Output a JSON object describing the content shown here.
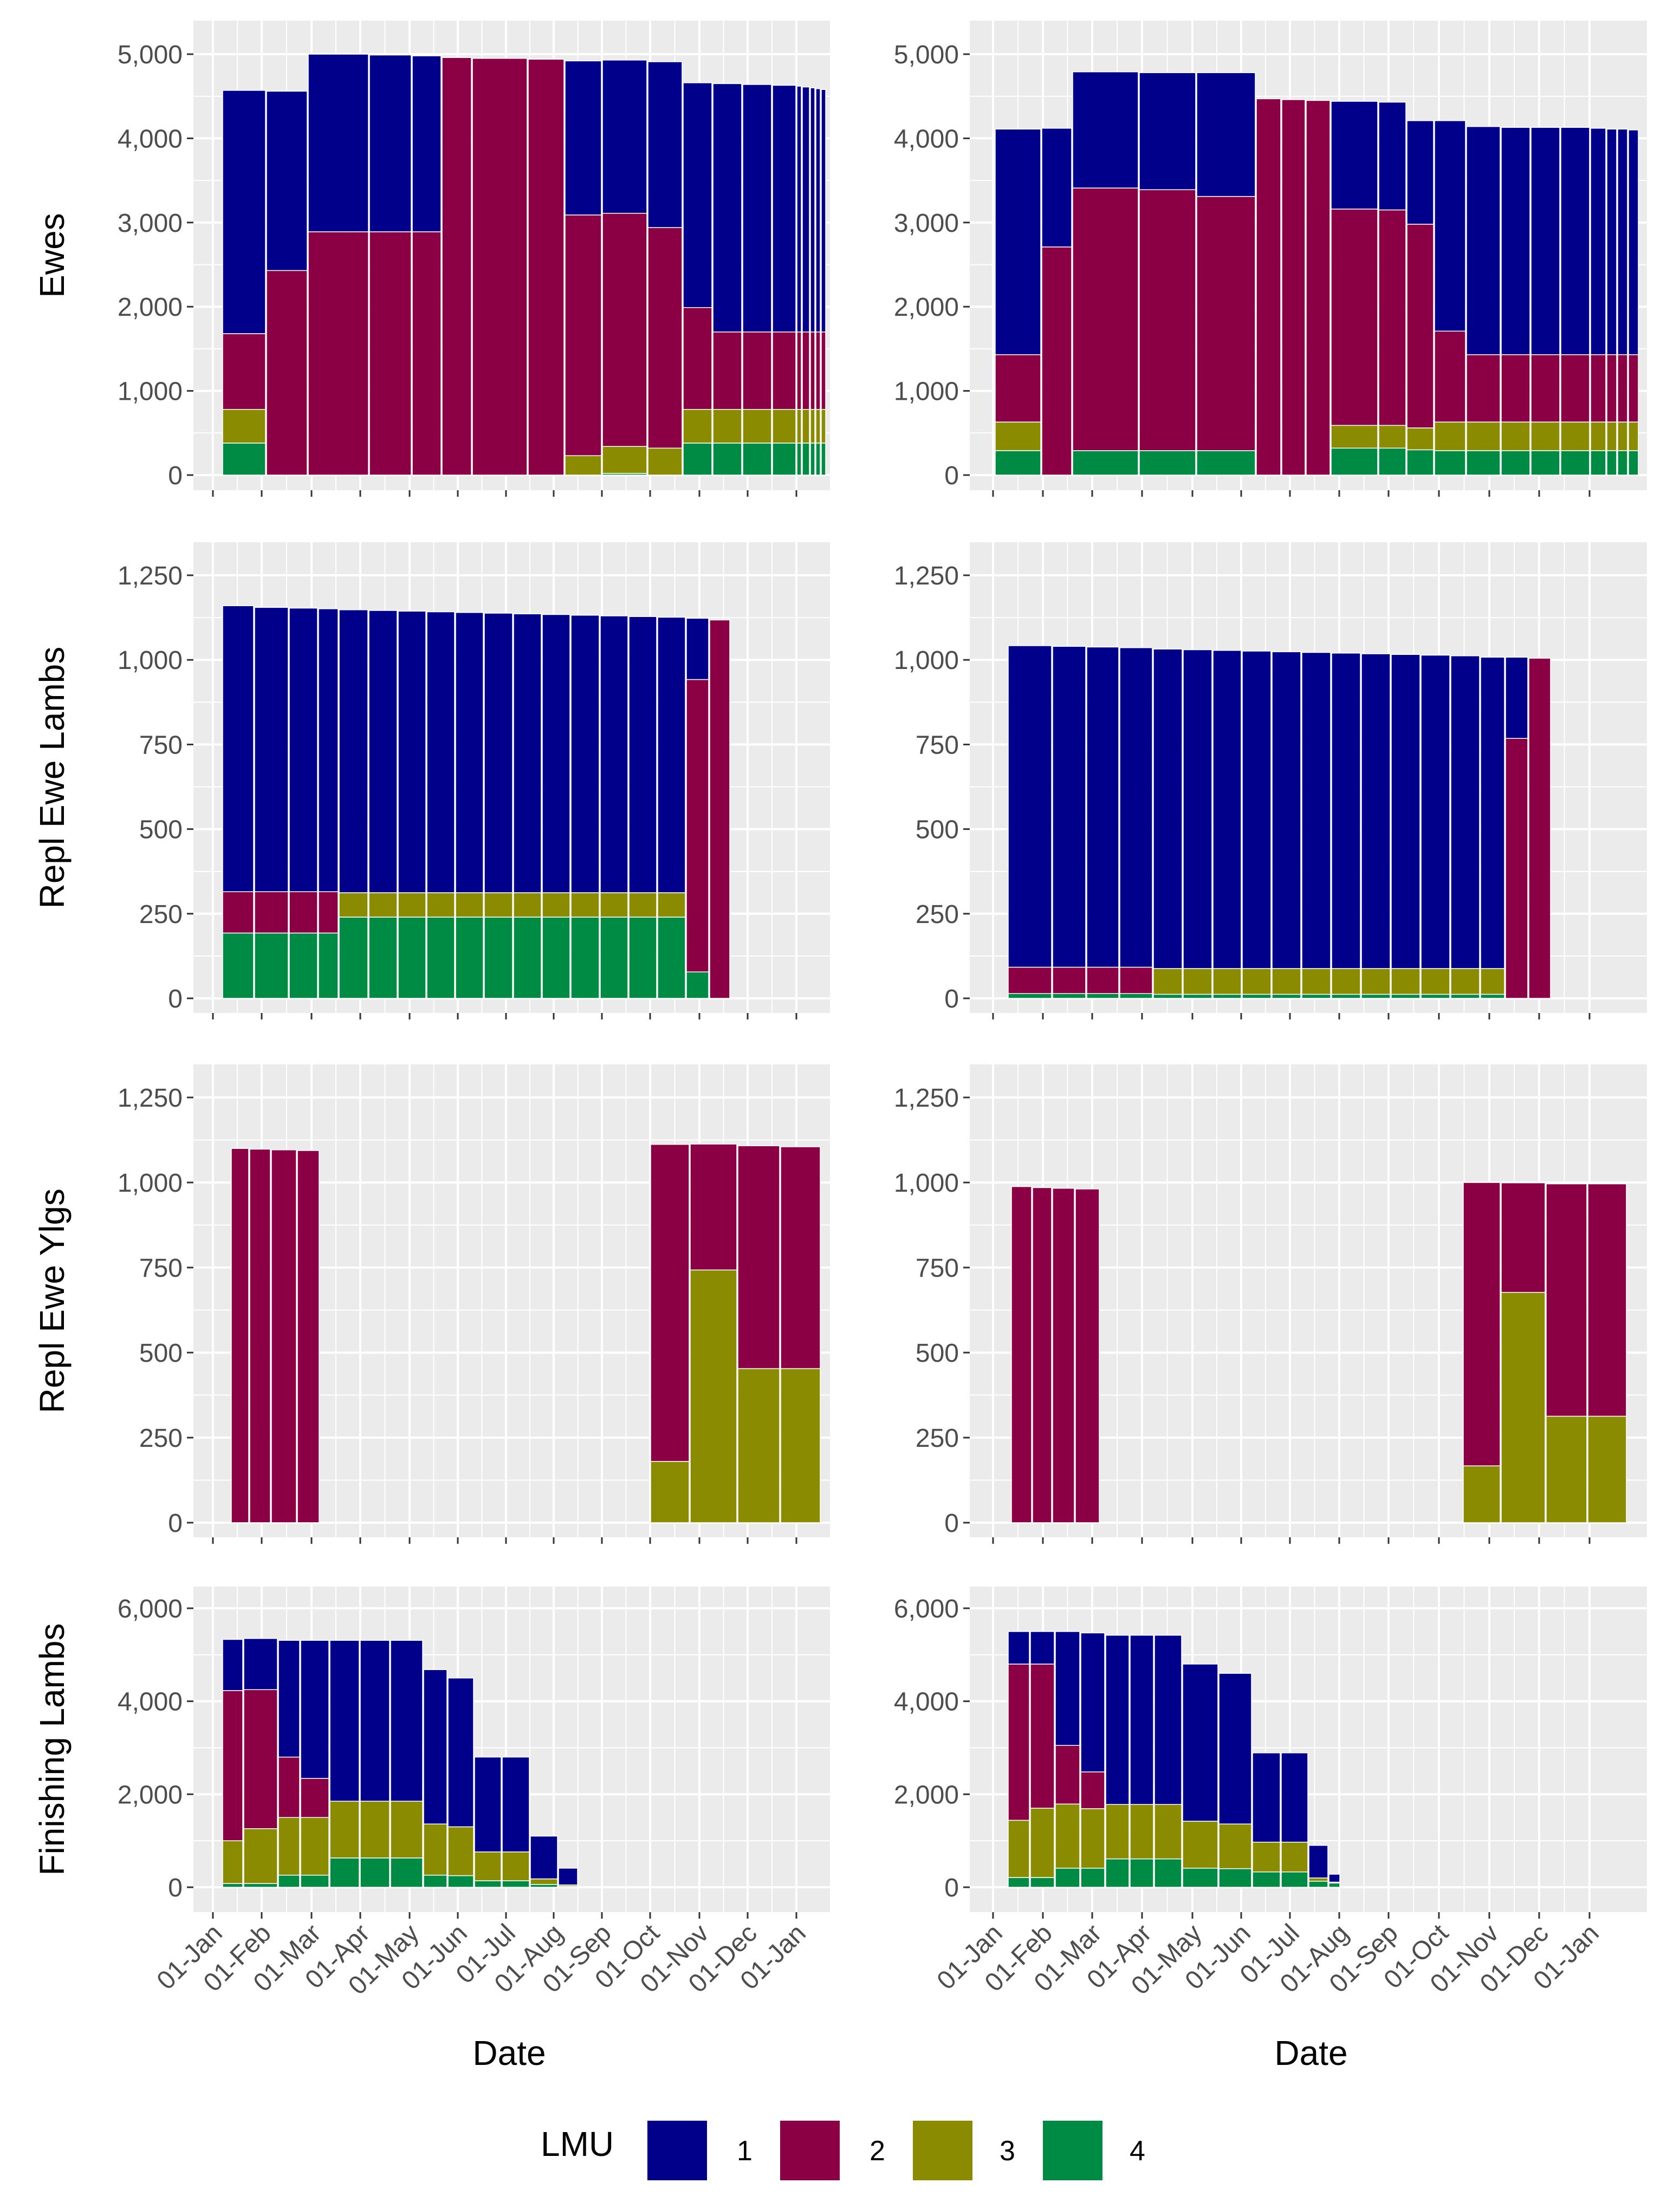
{
  "figure": {
    "xlabel": "Date",
    "x_ticks": [
      "01-Jan",
      "01-Feb",
      "01-Mar",
      "01-Apr",
      "01-May",
      "01-Jun",
      "01-Jul",
      "01-Aug",
      "01-Sep",
      "01-Oct",
      "01-Nov",
      "01-Dec",
      "01-Jan"
    ],
    "legend": {
      "title": "LMU",
      "entries": [
        {
          "label": "1",
          "color": "#00008b"
        },
        {
          "label": "2",
          "color": "#8b0045"
        },
        {
          "label": "3",
          "color": "#8b8b00"
        },
        {
          "label": "4",
          "color": "#008b45"
        }
      ]
    }
  },
  "chart_data": [
    {
      "type": "bar",
      "stacked": true,
      "row": 0,
      "col": 0,
      "ylabel": "Ewes",
      "xlabel": "",
      "ylim": [
        0,
        5000
      ],
      "y_ticks": [
        {
          "v": 0,
          "label": "0"
        },
        {
          "v": 1000,
          "label": "1,000"
        },
        {
          "v": 2000,
          "label": "2,000"
        },
        {
          "v": 3000,
          "label": "3,000"
        },
        {
          "v": 4000,
          "label": "4,000"
        },
        {
          "v": 5000,
          "label": "5,000"
        }
      ],
      "series": [
        {
          "name": "1",
          "values": [
            2890,
            2130,
            2110,
            2100,
            2090,
            0,
            0,
            0,
            1830,
            1820,
            1970,
            2670,
            2950,
            2940,
            2930,
            2920,
            2910,
            2900,
            2890,
            2880
          ]
        },
        {
          "name": "2",
          "values": [
            900,
            2430,
            2890,
            2890,
            2890,
            4960,
            4950,
            4940,
            2860,
            2770,
            2620,
            1210,
            920,
            920,
            920,
            920,
            920,
            920,
            920,
            920
          ]
        },
        {
          "name": "3",
          "values": [
            400,
            0,
            0,
            0,
            0,
            0,
            0,
            0,
            230,
            320,
            320,
            400,
            400,
            400,
            400,
            400,
            400,
            400,
            400,
            400
          ]
        },
        {
          "name": "4",
          "values": [
            380,
            0,
            0,
            0,
            0,
            0,
            0,
            0,
            0,
            20,
            0,
            380,
            380,
            380,
            380,
            380,
            380,
            380,
            380,
            380
          ]
        }
      ]
    },
    {
      "type": "bar",
      "stacked": true,
      "row": 0,
      "col": 1,
      "ylabel": "",
      "xlabel": "",
      "ylim": [
        0,
        5000
      ],
      "y_ticks": [
        {
          "v": 0,
          "label": "0"
        },
        {
          "v": 1000,
          "label": "1,000"
        },
        {
          "v": 2000,
          "label": "2,000"
        },
        {
          "v": 3000,
          "label": "3,000"
        },
        {
          "v": 4000,
          "label": "4,000"
        },
        {
          "v": 5000,
          "label": "5,000"
        }
      ],
      "series": [
        {
          "name": "1",
          "values": [
            2680,
            1410,
            1380,
            1390,
            1470,
            0,
            0,
            0,
            1280,
            1280,
            1230,
            2500,
            2710,
            2700,
            2700,
            2700,
            2690,
            2680,
            2680,
            2670
          ]
        },
        {
          "name": "2",
          "values": [
            800,
            2710,
            3120,
            3100,
            3020,
            4470,
            4460,
            4450,
            2570,
            2560,
            2420,
            1080,
            800,
            800,
            800,
            800,
            800,
            800,
            800,
            800
          ]
        },
        {
          "name": "3",
          "values": [
            340,
            0,
            0,
            0,
            0,
            0,
            0,
            0,
            270,
            270,
            260,
            340,
            340,
            340,
            340,
            340,
            340,
            340,
            340,
            340
          ]
        },
        {
          "name": "4",
          "values": [
            290,
            0,
            290,
            290,
            290,
            0,
            0,
            0,
            320,
            320,
            300,
            290,
            290,
            290,
            290,
            290,
            290,
            290,
            290,
            290
          ]
        }
      ]
    },
    {
      "type": "bar",
      "stacked": true,
      "row": 1,
      "col": 0,
      "ylabel": "Repl Ewe Lambs",
      "xlabel": "",
      "ylim": [
        0,
        1250
      ],
      "y_ticks": [
        {
          "v": 0,
          "label": "0"
        },
        {
          "v": 250,
          "label": "250"
        },
        {
          "v": 500,
          "label": "500"
        },
        {
          "v": 750,
          "label": "750"
        },
        {
          "v": 1000,
          "label": "1,000"
        },
        {
          "v": 1250,
          "label": "1,250"
        }
      ],
      "series": [
        {
          "name": "1",
          "values": [
            845,
            840,
            838,
            836,
            836,
            834,
            832,
            830,
            828,
            826,
            824,
            822,
            820,
            818,
            816,
            814,
            181,
            0
          ]
        },
        {
          "name": "2",
          "values": [
            122,
            122,
            122,
            122,
            0,
            0,
            0,
            0,
            0,
            0,
            0,
            0,
            0,
            0,
            0,
            0,
            864,
            1118
          ]
        },
        {
          "name": "3",
          "values": [
            0,
            0,
            0,
            0,
            72,
            72,
            72,
            72,
            72,
            72,
            72,
            72,
            72,
            72,
            72,
            72,
            0,
            0
          ]
        },
        {
          "name": "4",
          "values": [
            193,
            193,
            193,
            193,
            240,
            240,
            240,
            240,
            240,
            240,
            240,
            240,
            240,
            240,
            240,
            240,
            78,
            0
          ]
        }
      ]
    },
    {
      "type": "bar",
      "stacked": true,
      "row": 1,
      "col": 1,
      "ylabel": "",
      "xlabel": "",
      "ylim": [
        0,
        1250
      ],
      "y_ticks": [
        {
          "v": 0,
          "label": "0"
        },
        {
          "v": 250,
          "label": "250"
        },
        {
          "v": 500,
          "label": "500"
        },
        {
          "v": 750,
          "label": "750"
        },
        {
          "v": 1000,
          "label": "1,000"
        },
        {
          "v": 1250,
          "label": "1,250"
        }
      ],
      "series": [
        {
          "name": "1",
          "values": [
            950,
            948,
            946,
            944,
            944,
            942,
            940,
            938,
            936,
            934,
            932,
            930,
            928,
            926,
            924,
            920,
            240,
            0
          ]
        },
        {
          "name": "2",
          "values": [
            78,
            78,
            78,
            78,
            0,
            0,
            0,
            0,
            0,
            0,
            0,
            0,
            0,
            0,
            0,
            0,
            768,
            1005
          ]
        },
        {
          "name": "3",
          "values": [
            0,
            0,
            0,
            0,
            76,
            76,
            76,
            76,
            76,
            76,
            76,
            76,
            76,
            76,
            76,
            76,
            0,
            0
          ]
        },
        {
          "name": "4",
          "values": [
            14,
            14,
            14,
            14,
            12,
            12,
            12,
            12,
            12,
            12,
            12,
            12,
            12,
            12,
            12,
            12,
            0,
            0
          ]
        }
      ]
    },
    {
      "type": "bar",
      "stacked": true,
      "row": 2,
      "col": 0,
      "ylabel": "Repl Ewe Ylgs",
      "xlabel": "",
      "ylim": [
        0,
        1250
      ],
      "y_ticks": [
        {
          "v": 0,
          "label": "0"
        },
        {
          "v": 250,
          "label": "250"
        },
        {
          "v": 500,
          "label": "500"
        },
        {
          "v": 750,
          "label": "750"
        },
        {
          "v": 1000,
          "label": "1,000"
        },
        {
          "v": 1250,
          "label": "1,250"
        }
      ],
      "series": [
        {
          "name": "1",
          "values": [
            0,
            0,
            0,
            0,
            0,
            0,
            0,
            0,
            0,
            0,
            0,
            0,
            0,
            0,
            0,
            0,
            0,
            0,
            0,
            0
          ]
        },
        {
          "name": "2",
          "values": [
            1100,
            1098,
            1096,
            1094,
            0,
            0,
            0,
            0,
            0,
            0,
            0,
            0,
            0,
            0,
            0,
            0,
            932,
            370,
            655,
            652
          ]
        },
        {
          "name": "3",
          "values": [
            0,
            0,
            0,
            0,
            0,
            0,
            0,
            0,
            0,
            0,
            0,
            0,
            0,
            0,
            0,
            0,
            180,
            743,
            453,
            453
          ]
        },
        {
          "name": "4",
          "values": [
            0,
            0,
            0,
            0,
            0,
            0,
            0,
            0,
            0,
            0,
            0,
            0,
            0,
            0,
            0,
            0,
            0,
            0,
            0,
            0
          ]
        }
      ]
    },
    {
      "type": "bar",
      "stacked": true,
      "row": 2,
      "col": 1,
      "ylabel": "",
      "xlabel": "",
      "ylim": [
        0,
        1250
      ],
      "y_ticks": [
        {
          "v": 0,
          "label": "0"
        },
        {
          "v": 250,
          "label": "250"
        },
        {
          "v": 500,
          "label": "500"
        },
        {
          "v": 750,
          "label": "750"
        },
        {
          "v": 1000,
          "label": "1,000"
        },
        {
          "v": 1250,
          "label": "1,250"
        }
      ],
      "series": [
        {
          "name": "1",
          "values": [
            0,
            0,
            0,
            0,
            0,
            0,
            0,
            0,
            0,
            0,
            0,
            0,
            0,
            0,
            0,
            0,
            0,
            0,
            0,
            0
          ]
        },
        {
          "name": "2",
          "values": [
            988,
            985,
            983,
            981,
            0,
            0,
            0,
            0,
            0,
            0,
            0,
            0,
            0,
            0,
            0,
            0,
            833,
            322,
            683,
            683
          ]
        },
        {
          "name": "3",
          "values": [
            0,
            0,
            0,
            0,
            0,
            0,
            0,
            0,
            0,
            0,
            0,
            0,
            0,
            0,
            0,
            0,
            167,
            677,
            313,
            313
          ]
        },
        {
          "name": "4",
          "values": [
            0,
            0,
            0,
            0,
            0,
            0,
            0,
            0,
            0,
            0,
            0,
            0,
            0,
            0,
            0,
            0,
            0,
            0,
            0,
            0
          ]
        }
      ]
    },
    {
      "type": "bar",
      "stacked": true,
      "row": 3,
      "col": 0,
      "ylabel": "Finishing Lambs",
      "xlabel": "Date",
      "ylim": [
        0,
        6000
      ],
      "y_ticks": [
        {
          "v": 0,
          "label": "0"
        },
        {
          "v": 2000,
          "label": "2,000"
        },
        {
          "v": 4000,
          "label": "4,000"
        },
        {
          "v": 6000,
          "label": "6,000"
        }
      ],
      "series": [
        {
          "name": "1",
          "values": [
            1100,
            1100,
            2510,
            2970,
            3460,
            3460,
            3460,
            3320,
            3200,
            2040,
            2040,
            920,
            360
          ]
        },
        {
          "name": "2",
          "values": [
            3230,
            2990,
            1300,
            840,
            0,
            0,
            0,
            0,
            0,
            0,
            0,
            0,
            0
          ]
        },
        {
          "name": "3",
          "values": [
            920,
            1180,
            1240,
            1240,
            1220,
            1220,
            1220,
            1100,
            1050,
            620,
            620,
            120,
            30
          ]
        },
        {
          "name": "4",
          "values": [
            80,
            80,
            260,
            260,
            630,
            630,
            630,
            260,
            250,
            140,
            140,
            60,
            20
          ]
        }
      ]
    },
    {
      "type": "bar",
      "stacked": true,
      "row": 3,
      "col": 1,
      "ylabel": "",
      "xlabel": "Date",
      "ylim": [
        0,
        6000
      ],
      "y_ticks": [
        {
          "v": 0,
          "label": "0"
        },
        {
          "v": 2000,
          "label": "2,000"
        },
        {
          "v": 4000,
          "label": "4,000"
        },
        {
          "v": 6000,
          "label": "6,000"
        }
      ],
      "series": [
        {
          "name": "1",
          "values": [
            700,
            700,
            2450,
            2990,
            3640,
            3640,
            3640,
            3380,
            3240,
            1920,
            1920,
            700,
            170
          ]
        },
        {
          "name": "2",
          "values": [
            3360,
            3100,
            1260,
            790,
            0,
            0,
            0,
            0,
            0,
            0,
            0,
            0,
            0
          ]
        },
        {
          "name": "3",
          "values": [
            1230,
            1490,
            1380,
            1280,
            1170,
            1170,
            1170,
            1010,
            960,
            640,
            640,
            70,
            20
          ]
        },
        {
          "name": "4",
          "values": [
            210,
            210,
            410,
            410,
            610,
            610,
            610,
            410,
            400,
            330,
            330,
            130,
            90
          ]
        }
      ]
    }
  ]
}
